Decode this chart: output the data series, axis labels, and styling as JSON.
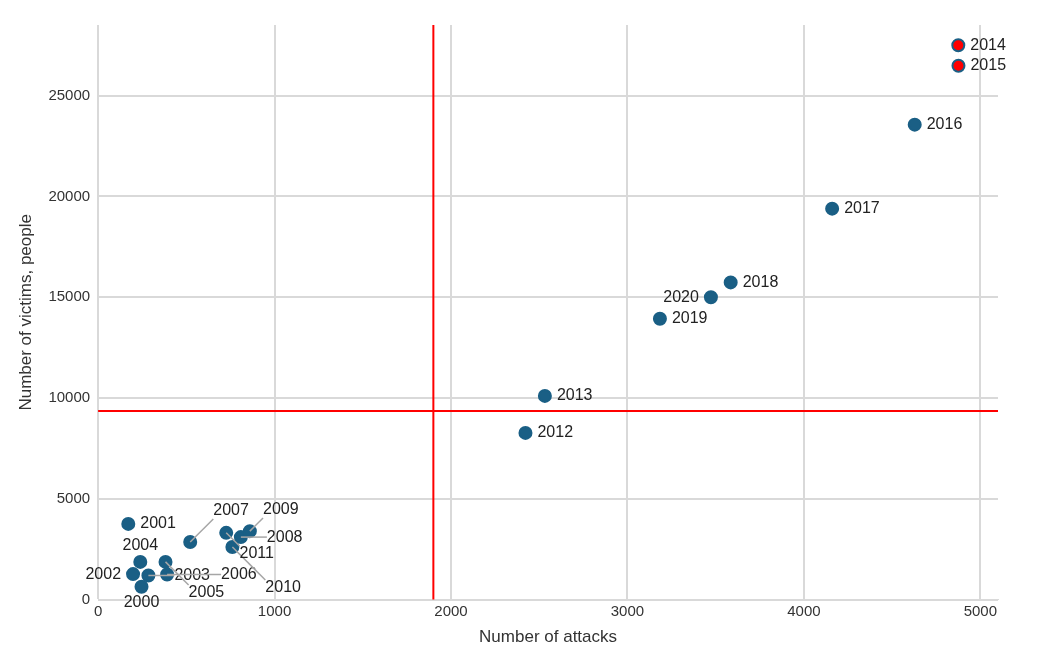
{
  "chart_data": {
    "type": "scatter",
    "xlabel": "Number of attacks",
    "ylabel": "Number of victims, people",
    "x": [
      246,
      171,
      198,
      285,
      239,
      382,
      391,
      522,
      809,
      860,
      761,
      726,
      2422,
      2532,
      4875,
      4876,
      4628,
      4160,
      3585,
      3184,
      3473
    ],
    "series": [
      {
        "color": "#1a5f85",
        "colors": [
          "#1a5f85",
          "#1a5f85",
          "#1a5f85",
          "#1a5f85",
          "#1a5f85",
          "#1a5f85",
          "#1a5f85",
          "#1a5f85",
          "#1a5f85",
          "#1a5f85",
          "#1a5f85",
          "#1a5f85",
          "#1a5f85",
          "#1a5f85",
          "#ff0000",
          "#ff0000",
          "#1a5f85",
          "#1a5f85",
          "#1a5f85",
          "#1a5f85",
          "#1a5f85"
        ],
        "values": [
          640,
          3755,
          1265,
          1196,
          1870,
          1870,
          1245,
          2854,
          3100,
          3396,
          2608,
          3312,
          8268,
          10103,
          27495,
          26476,
          23557,
          19390,
          15733,
          13927,
          14995
        ]
      }
    ],
    "annotations": [
      {
        "text": "2000",
        "x": 246,
        "y": 640
      },
      {
        "text": "2001",
        "x": 171,
        "y": 3755
      },
      {
        "text": "2002",
        "x": 198,
        "y": 1265
      },
      {
        "text": "2003",
        "x": 285,
        "y": 1196
      },
      {
        "text": "2004",
        "x": 239,
        "y": 1870
      },
      {
        "text": "2005",
        "x": 382,
        "y": 1870
      },
      {
        "text": "2006",
        "x": 391,
        "y": 1245
      },
      {
        "text": "2007",
        "x": 522,
        "y": 2854
      },
      {
        "text": "2008",
        "x": 809,
        "y": 3100
      },
      {
        "text": "2009",
        "x": 860,
        "y": 3396
      },
      {
        "text": "2010",
        "x": 761,
        "y": 2608
      },
      {
        "text": "2011",
        "x": 726,
        "y": 3312
      },
      {
        "text": "2012",
        "x": 2422,
        "y": 8268
      },
      {
        "text": "2013",
        "x": 2532,
        "y": 10103
      },
      {
        "text": "2014",
        "x": 4875,
        "y": 27495
      },
      {
        "text": "2015",
        "x": 4876,
        "y": 26476
      },
      {
        "text": "2016",
        "x": 4628,
        "y": 23557
      },
      {
        "text": "2017",
        "x": 4160,
        "y": 19390
      },
      {
        "text": "2018",
        "x": 3585,
        "y": 15733
      },
      {
        "text": "2019",
        "x": 3184,
        "y": 13927
      },
      {
        "text": "2020",
        "x": 3473,
        "y": 14995
      }
    ],
    "ref_lines": [
      {
        "axis": "x",
        "value": 1900,
        "color": "#ff0000"
      },
      {
        "axis": "y",
        "value": 9350,
        "color": "#ff0000"
      }
    ],
    "xlim": [
      0,
      5100
    ],
    "xticks": [
      0,
      1000,
      2000,
      3000,
      4000,
      5000
    ],
    "ylim": [
      0,
      28500
    ],
    "yticks": [
      0,
      5000,
      10000,
      15000,
      20000,
      25000
    ],
    "grid": true,
    "legend": false,
    "marker": "circle"
  }
}
